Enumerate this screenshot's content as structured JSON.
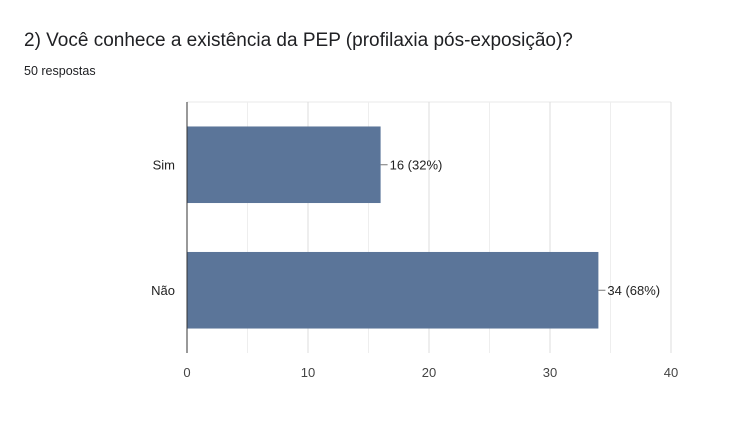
{
  "question": {
    "title": "2) Você conhece a existência da PEP (profilaxia pós-exposição)?",
    "responses": "50 respostas"
  },
  "chart_data": {
    "type": "bar",
    "orientation": "horizontal",
    "categories": [
      "Sim",
      "Não"
    ],
    "values": [
      16,
      34
    ],
    "data_labels": [
      "16 (32%)",
      "34 (68%)"
    ],
    "xlim": [
      0,
      40
    ],
    "xticks": [
      0,
      10,
      20,
      30,
      40
    ],
    "grid": true,
    "bar_color": "#5b7599",
    "legend": "none"
  }
}
